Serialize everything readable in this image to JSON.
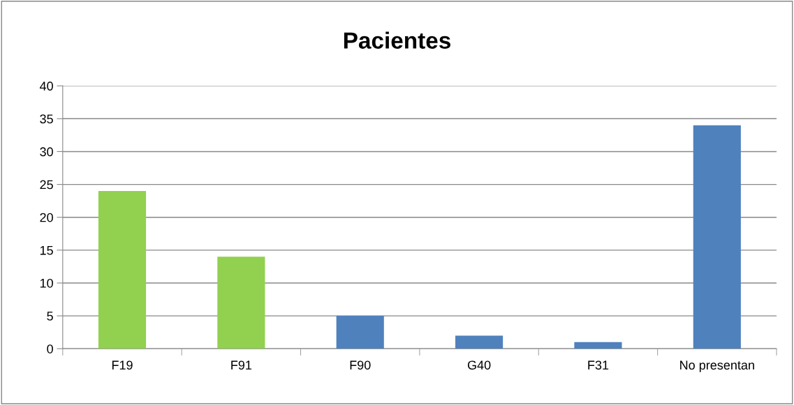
{
  "chart_data": {
    "type": "bar",
    "title": "Pacientes",
    "categories": [
      "F19",
      "F91",
      "F90",
      "G40",
      "F31",
      "No presentan"
    ],
    "values": [
      24,
      14,
      5,
      2,
      1,
      34
    ],
    "colors": [
      "#92d050",
      "#92d050",
      "#4f81bd",
      "#4f81bd",
      "#4f81bd",
      "#4f81bd"
    ],
    "ylim": [
      0,
      40
    ],
    "yticks": [
      0,
      5,
      10,
      15,
      20,
      25,
      30,
      35,
      40
    ],
    "grid": "y"
  }
}
